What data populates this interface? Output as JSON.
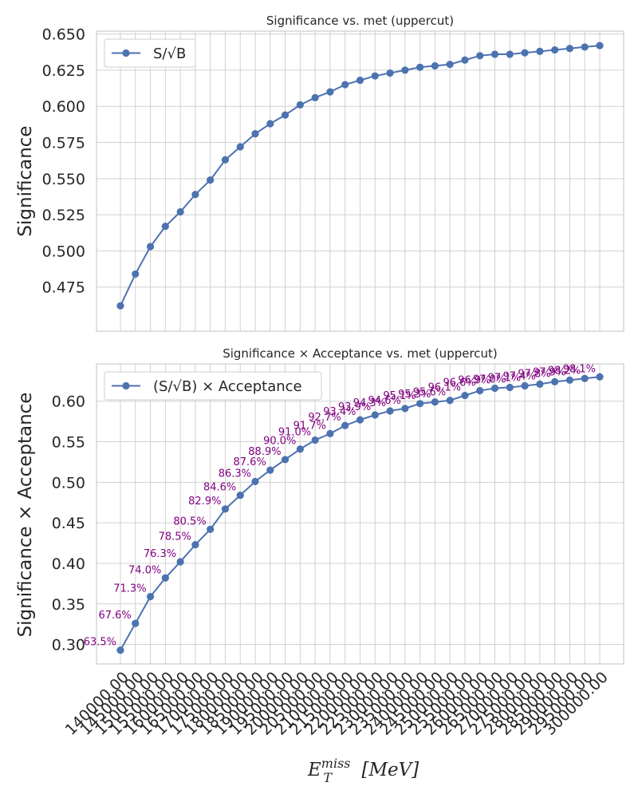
{
  "chart_data": [
    {
      "type": "line",
      "title": "Significance vs. met (uppercut)",
      "xlabel": "",
      "ylabel": "Significance",
      "ylim": [
        0.4445,
        0.652
      ],
      "yticks": [
        0.475,
        0.5,
        0.525,
        0.55,
        0.575,
        0.6,
        0.625,
        0.65
      ],
      "ytick_labels": [
        "0.475",
        "0.500",
        "0.525",
        "0.550",
        "0.575",
        "0.600",
        "0.625",
        "0.650"
      ],
      "grid": true,
      "legend_position": "top-left",
      "series": [
        {
          "name": "S/√B",
          "color": "#4c72b0",
          "values": [
            0.462,
            0.484,
            0.503,
            0.517,
            0.527,
            0.539,
            0.549,
            0.563,
            0.572,
            0.581,
            0.588,
            0.594,
            0.601,
            0.606,
            0.61,
            0.615,
            0.618,
            0.621,
            0.623,
            0.625,
            0.627,
            0.628,
            0.629,
            0.632,
            0.635,
            0.636,
            0.636,
            0.637,
            0.638,
            0.639,
            0.64,
            0.641,
            0.642
          ]
        }
      ]
    },
    {
      "type": "line",
      "title": "Significance × Acceptance vs. met (uppercut)",
      "xlabel": "E_T^miss [MeV]",
      "xlabel_main": "E",
      "xlabel_sub": "T",
      "xlabel_sup": "miss",
      "xlabel_unit": "[MeV]",
      "ylabel": "Significance × Acceptance",
      "ylim": [
        0.276,
        0.646
      ],
      "yticks": [
        0.3,
        0.35,
        0.4,
        0.45,
        0.5,
        0.55,
        0.6
      ],
      "ytick_labels": [
        "0.30",
        "0.35",
        "0.40",
        "0.45",
        "0.50",
        "0.55",
        "0.60"
      ],
      "grid": true,
      "legend_position": "top-left",
      "series": [
        {
          "name": "(S/√B) × Acceptance",
          "color": "#4c72b0",
          "values": [
            0.293,
            0.326,
            0.359,
            0.382,
            0.402,
            0.423,
            0.442,
            0.467,
            0.484,
            0.501,
            0.515,
            0.528,
            0.541,
            0.552,
            0.56,
            0.57,
            0.577,
            0.583,
            0.588,
            0.591,
            0.597,
            0.599,
            0.601,
            0.607,
            0.613,
            0.616,
            0.617,
            0.619,
            0.621,
            0.624,
            0.626,
            0.628,
            0.63
          ],
          "acceptance_labels": [
            "63.5%",
            "67.6%",
            "71.3%",
            "74.0%",
            "76.3%",
            "78.5%",
            "80.5%",
            "82.9%",
            "84.6%",
            "86.3%",
            "87.6%",
            "88.9%",
            "90.0%",
            "91.0%",
            "91.7%",
            "92.7%",
            "93.4%",
            "93.9%",
            "94.3%",
            "94.6%",
            "95.1%",
            "95.3%",
            "95.6%",
            "96.1%",
            "96.6%",
            "96.9%",
            "97.0%",
            "97.1%",
            "97.4%",
            "97.8%",
            "97.9%",
            "98.2%",
            "98.1%"
          ]
        }
      ]
    }
  ],
  "x_tick_labels": [
    "140000.00",
    "145000.00",
    "150000.00",
    "155000.00",
    "160000.00",
    "165000.00",
    "170000.00",
    "175000.00",
    "180000.00",
    "185000.00",
    "190000.00",
    "195000.00",
    "200000.00",
    "205000.00",
    "210000.00",
    "215000.00",
    "220000.00",
    "225000.00",
    "230000.00",
    "235000.00",
    "240000.00",
    "245000.00",
    "250000.00",
    "255000.00",
    "260000.00",
    "265000.00",
    "270000.00",
    "275000.00",
    "280000.00",
    "285000.00",
    "290000.00",
    "295000.00",
    "300000.00"
  ]
}
